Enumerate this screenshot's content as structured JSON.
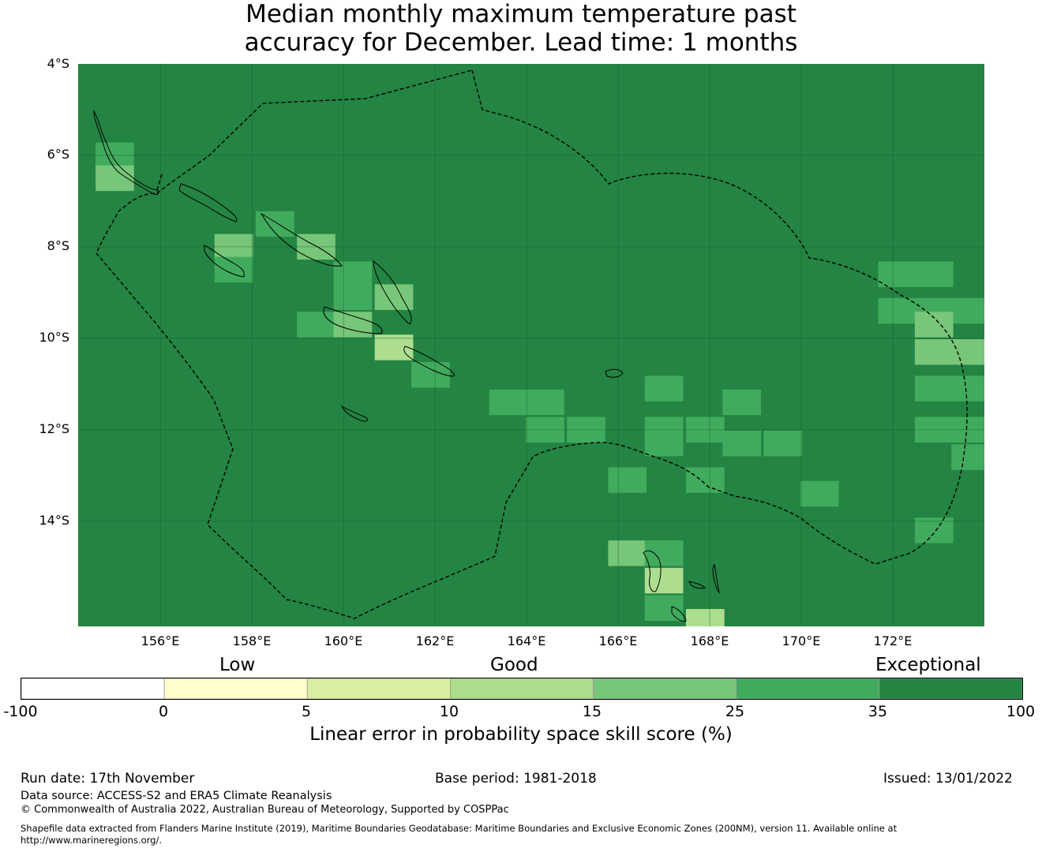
{
  "title": {
    "line1": "Median monthly maximum temperature past",
    "line2": "accuracy for December. Lead time: 1 months"
  },
  "map": {
    "lat_labels": [
      "4°S",
      "6°S",
      "8°S",
      "10°S",
      "12°S",
      "14°S"
    ],
    "lon_labels": [
      "156°E",
      "158°E",
      "160°E",
      "162°E",
      "164°E",
      "166°E",
      "168°E",
      "170°E",
      "172°E"
    ],
    "extent": {
      "lon_min": 154.2,
      "lon_max": 174.0,
      "lat_min": -16.3,
      "lat_max": -4.0
    },
    "background_class": "35-100",
    "cells": [
      {
        "lon": 155.0,
        "lat": -6.0,
        "class": "25-35"
      },
      {
        "lon": 155.0,
        "lat": -6.5,
        "class": "15-25"
      },
      {
        "lon": 158.5,
        "lat": -7.5,
        "class": "25-35"
      },
      {
        "lon": 157.6,
        "lat": -8.0,
        "class": "15-25"
      },
      {
        "lon": 157.6,
        "lat": -8.5,
        "class": "25-35"
      },
      {
        "lon": 159.4,
        "lat": -8.0,
        "class": "15-25"
      },
      {
        "lon": 160.2,
        "lat": -8.6,
        "class": "25-35"
      },
      {
        "lon": 160.2,
        "lat": -9.1,
        "class": "25-35"
      },
      {
        "lon": 161.1,
        "lat": -9.1,
        "class": "15-25"
      },
      {
        "lon": 159.4,
        "lat": -9.7,
        "class": "25-35"
      },
      {
        "lon": 160.2,
        "lat": -9.7,
        "class": "15-25"
      },
      {
        "lon": 161.1,
        "lat": -10.2,
        "class": "10-15"
      },
      {
        "lon": 161.9,
        "lat": -10.8,
        "class": "25-35"
      },
      {
        "lon": 163.6,
        "lat": -11.4,
        "class": "25-35"
      },
      {
        "lon": 164.4,
        "lat": -11.4,
        "class": "25-35"
      },
      {
        "lon": 164.4,
        "lat": -12.0,
        "class": "25-35"
      },
      {
        "lon": 165.3,
        "lat": -12.0,
        "class": "25-35"
      },
      {
        "lon": 167.0,
        "lat": -11.1,
        "class": "25-35"
      },
      {
        "lon": 167.0,
        "lat": -12.0,
        "class": "25-35"
      },
      {
        "lon": 167.0,
        "lat": -12.3,
        "class": "25-35"
      },
      {
        "lon": 167.9,
        "lat": -12.0,
        "class": "25-35"
      },
      {
        "lon": 168.7,
        "lat": -11.4,
        "class": "25-35"
      },
      {
        "lon": 168.7,
        "lat": -12.3,
        "class": "25-35"
      },
      {
        "lon": 169.6,
        "lat": -12.3,
        "class": "25-35"
      },
      {
        "lon": 166.2,
        "lat": -13.1,
        "class": "25-35"
      },
      {
        "lon": 167.9,
        "lat": -13.1,
        "class": "25-35"
      },
      {
        "lon": 170.4,
        "lat": -13.4,
        "class": "25-35"
      },
      {
        "lon": 172.1,
        "lat": -8.6,
        "class": "25-35"
      },
      {
        "lon": 172.9,
        "lat": -8.6,
        "class": "25-35"
      },
      {
        "lon": 172.1,
        "lat": -9.4,
        "class": "25-35"
      },
      {
        "lon": 172.9,
        "lat": -9.4,
        "class": "25-35"
      },
      {
        "lon": 173.7,
        "lat": -9.4,
        "class": "25-35"
      },
      {
        "lon": 172.9,
        "lat": -9.7,
        "class": "15-25"
      },
      {
        "lon": 172.9,
        "lat": -10.3,
        "class": "15-25"
      },
      {
        "lon": 173.7,
        "lat": -10.3,
        "class": "15-25"
      },
      {
        "lon": 172.9,
        "lat": -11.1,
        "class": "25-35"
      },
      {
        "lon": 173.7,
        "lat": -11.1,
        "class": "25-35"
      },
      {
        "lon": 172.9,
        "lat": -12.0,
        "class": "25-35"
      },
      {
        "lon": 173.7,
        "lat": -12.0,
        "class": "25-35"
      },
      {
        "lon": 173.7,
        "lat": -12.6,
        "class": "25-35"
      },
      {
        "lon": 172.9,
        "lat": -14.2,
        "class": "25-35"
      },
      {
        "lon": 166.2,
        "lat": -14.7,
        "class": "15-25"
      },
      {
        "lon": 167.0,
        "lat": -14.7,
        "class": "25-35"
      },
      {
        "lon": 167.0,
        "lat": -15.3,
        "class": "10-15"
      },
      {
        "lon": 167.0,
        "lat": -15.9,
        "class": "25-35"
      },
      {
        "lon": 167.9,
        "lat": -16.2,
        "class": "10-15"
      }
    ]
  },
  "colorbar": {
    "categories": [
      "Low",
      "Good",
      "Exceptional"
    ],
    "ticks": [
      "-100",
      "0",
      "5",
      "10",
      "15",
      "25",
      "35",
      "100"
    ],
    "colors": [
      "#ffffff",
      "#ffffcc",
      "#d9f0a3",
      "#addd8e",
      "#78c679",
      "#41ab5d",
      "#238443"
    ],
    "class_keys": [
      "-100-0",
      "0-5",
      "5-10",
      "10-15",
      "15-25",
      "25-35",
      "35-100"
    ],
    "title": "Linear error in probability space skill score (%)"
  },
  "footer": {
    "run_date": "Run date: 17th November",
    "base_period": "Base period: 1981-2018",
    "issued": "Issued: 13/01/2022",
    "data_source": "Data source: ACCESS-S2 and ERA5 Climate Reanalysis",
    "copyright": "© Commonwealth of Australia 2022, Australian Bureau of Meteorology, Supported by COSPPac",
    "shapefile_line1": "Shapefile data extracted from Flanders Marine Institute (2019), Maritime Boundaries Geodatabase: Maritime Boundaries and Exclusive Economic Zones (200NM), version 11. Available online at",
    "shapefile_line2": "http://www.marineregions.org/."
  }
}
